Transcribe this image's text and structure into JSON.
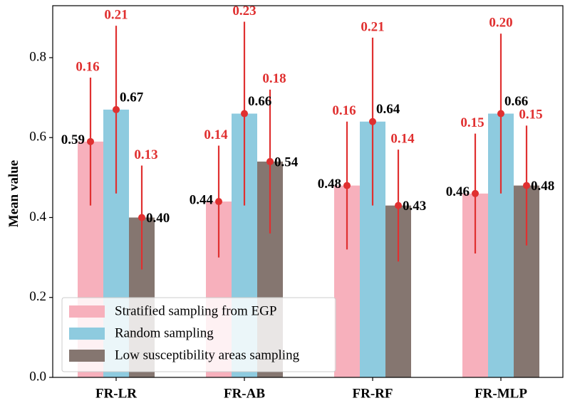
{
  "chart_data": {
    "type": "bar",
    "title": "",
    "xlabel": "",
    "ylabel": "Mean value",
    "ylim": [
      0,
      0.93
    ],
    "yticks": [
      "0.0",
      "0.2",
      "0.4",
      "0.6",
      "0.8"
    ],
    "categories": [
      "FR-LR",
      "FR-AB",
      "FR-RF",
      "FR-MLP"
    ],
    "series": [
      {
        "name": "Stratified sampling from EGP",
        "color": "#f7b0bc",
        "values": [
          0.59,
          0.44,
          0.48,
          0.46
        ],
        "errors": [
          0.16,
          0.14,
          0.16,
          0.15
        ],
        "value_labels": [
          "0.59",
          "0.44",
          "0.48",
          "0.46"
        ],
        "error_labels": [
          "0.16",
          "0.14",
          "0.16",
          "0.15"
        ]
      },
      {
        "name": "Random sampling",
        "color": "#8ecbdf",
        "values": [
          0.67,
          0.66,
          0.64,
          0.66
        ],
        "errors": [
          0.21,
          0.23,
          0.21,
          0.2
        ],
        "value_labels": [
          "0.67",
          "0.66",
          "0.64",
          "0.66"
        ],
        "error_labels": [
          "0.21",
          "0.23",
          "0.21",
          "0.20"
        ]
      },
      {
        "name": "Low susceptibility areas sampling",
        "color": "#857670",
        "values": [
          0.4,
          0.54,
          0.43,
          0.48
        ],
        "errors": [
          0.13,
          0.18,
          0.14,
          0.15
        ],
        "value_labels": [
          "0.40",
          "0.54",
          "0.43",
          "0.48"
        ],
        "error_labels": [
          "0.13",
          "0.18",
          "0.14",
          "0.15"
        ]
      }
    ],
    "error_color": "#e03030",
    "grid": false,
    "legend_position": "lower-left"
  }
}
